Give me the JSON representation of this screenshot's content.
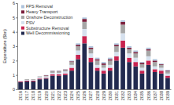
{
  "chart_data": {
    "type": "bar",
    "stacked": true,
    "y_label": "Expenditure ($bn)",
    "categories": [
      "2016",
      "2017",
      "2018",
      "2019",
      "2020",
      "2021",
      "2022",
      "2023",
      "2024",
      "2025",
      "2026",
      "2027",
      "2028",
      "2029",
      "2030",
      "2031",
      "2032",
      "2033",
      "2034",
      "2035",
      "2036",
      "2037",
      "2038",
      "2039"
    ],
    "ylim": [
      0,
      6
    ],
    "yticks": [
      0,
      1,
      2,
      3,
      4,
      5,
      6
    ],
    "grid": false,
    "legend": "upper-left",
    "series": [
      {
        "name": "FPS Removal",
        "color": "#aec3dc",
        "values": [
          0,
          0,
          0,
          0,
          0.02,
          0.02,
          0.02,
          0.02,
          0.05,
          0.1,
          0.1,
          0.1,
          0.1,
          0.1,
          0.1,
          0.1,
          0.1,
          0.1,
          0.1,
          0.05,
          0.1,
          0.1,
          0.05,
          0.05
        ]
      },
      {
        "name": "Heavy Transport",
        "color": "#7b1f3c",
        "values": [
          0,
          0,
          0,
          0,
          0.03,
          0.03,
          0.03,
          0.03,
          0.05,
          0.1,
          0.2,
          0.1,
          0.1,
          0.1,
          0.1,
          0.1,
          0.2,
          0.1,
          0.1,
          0.1,
          0.1,
          0.1,
          0.05,
          0.05
        ]
      },
      {
        "name": "Onshore Deconstruction",
        "color": "#a6a6a6",
        "values": [
          0,
          0.05,
          0.05,
          0.05,
          0.05,
          0.1,
          0.1,
          0.1,
          0.2,
          0.3,
          0.5,
          0.3,
          0.3,
          0.2,
          0.3,
          0.4,
          0.6,
          0.3,
          0.3,
          0.25,
          0.4,
          0.3,
          0.2,
          0.15
        ]
      },
      {
        "name": "PSV",
        "color": "#d6e1ee",
        "values": [
          0.05,
          0.05,
          0.05,
          0.1,
          0.1,
          0.1,
          0.1,
          0.15,
          0.2,
          0.3,
          0.5,
          0.3,
          0.2,
          0.2,
          0.2,
          0.3,
          0.5,
          0.3,
          0.3,
          0.2,
          0.3,
          0.2,
          0.2,
          0.15
        ]
      },
      {
        "name": "Substructure Removal",
        "color": "#c8234f",
        "values": [
          0.05,
          0.05,
          0.05,
          0.05,
          0.05,
          0.1,
          0.1,
          0.1,
          0.2,
          0.3,
          0.5,
          0.3,
          0.2,
          0.2,
          0.2,
          0.3,
          0.5,
          0.3,
          0.3,
          0.2,
          0.3,
          0.2,
          0.2,
          0.15
        ]
      },
      {
        "name": "Well Decommissioning",
        "color": "#222a4f",
        "values": [
          0.5,
          0.55,
          0.55,
          0.7,
          0.75,
          0.95,
          0.95,
          1.0,
          1.3,
          2.1,
          3.2,
          1.9,
          1.3,
          1.1,
          1.3,
          2.0,
          2.9,
          1.9,
          1.6,
          1.1,
          1.7,
          1.2,
          1.1,
          0.8
        ]
      }
    ]
  }
}
